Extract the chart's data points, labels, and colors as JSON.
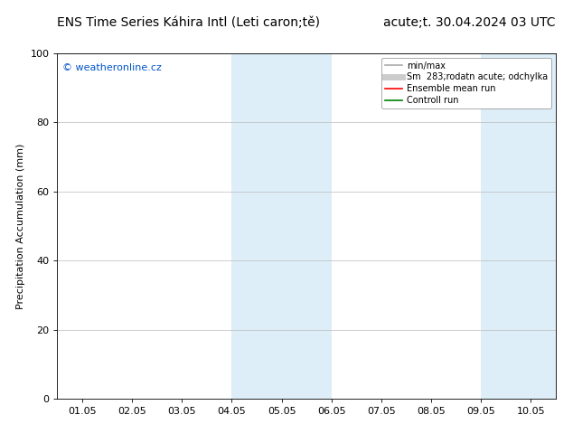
{
  "title_left": "ENS Time Series Káhira Intl (Leti caron;tě)",
  "title_right": "acute;t. 30.04.2024 03 UTC",
  "ylabel": "Precipitation Accumulation (mm)",
  "ylim": [
    0,
    100
  ],
  "yticks": [
    0,
    20,
    40,
    60,
    80,
    100
  ],
  "x_tick_labels": [
    "01.05",
    "02.05",
    "03.05",
    "04.05",
    "05.05",
    "06.05",
    "07.05",
    "08.05",
    "09.05",
    "10.05"
  ],
  "x_tick_positions": [
    1,
    2,
    3,
    4,
    5,
    6,
    7,
    8,
    9,
    10
  ],
  "xlim": [
    0.5,
    10.5
  ],
  "shaded_regions": [
    {
      "xmin": 4.0,
      "xmax": 6.0,
      "color": "#ddeef8"
    },
    {
      "xmin": 9.0,
      "xmax": 10.5,
      "color": "#ddeef8"
    }
  ],
  "legend_entries": [
    {
      "label": "min/max",
      "color": "#aaaaaa",
      "lw": 1.2
    },
    {
      "label": "Sm  283;rodatn acute; odchylka",
      "color": "#cccccc",
      "lw": 5
    },
    {
      "label": "Ensemble mean run",
      "color": "red",
      "lw": 1.2
    },
    {
      "label": "Controll run",
      "color": "green",
      "lw": 1.2
    }
  ],
  "watermark_text": "© weatheronline.cz",
  "watermark_color": "#0055cc",
  "background_color": "#ffffff",
  "plot_bg_color": "#ffffff",
  "grid_color": "#bbbbbb",
  "title_fontsize": 10,
  "ylabel_fontsize": 8,
  "tick_fontsize": 8,
  "legend_fontsize": 7,
  "watermark_fontsize": 8
}
